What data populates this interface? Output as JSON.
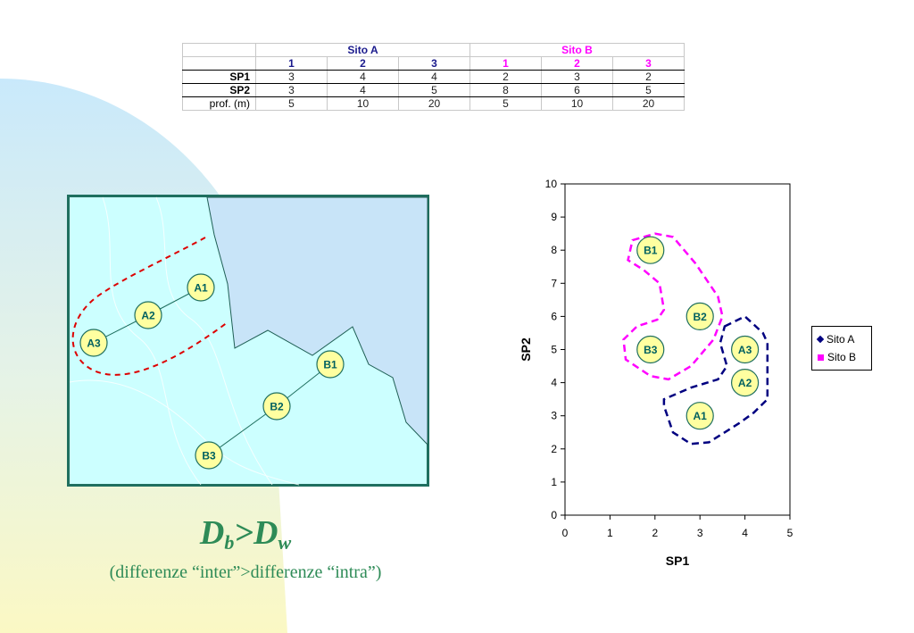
{
  "table": {
    "site_a": "Sito A",
    "site_b": "Sito B",
    "col_labels": [
      "1",
      "2",
      "3",
      "1",
      "2",
      "3"
    ],
    "rows": [
      {
        "label": "SP1",
        "values": [
          "3",
          "4",
          "4",
          "2",
          "3",
          "2"
        ]
      },
      {
        "label": "SP2",
        "values": [
          "3",
          "4",
          "5",
          "8",
          "6",
          "5"
        ]
      },
      {
        "label": "prof. (m)",
        "values": [
          "5",
          "10",
          "20",
          "5",
          "10",
          "20"
        ]
      }
    ]
  },
  "map": {
    "nodes": [
      "A1",
      "A2",
      "A3",
      "B1",
      "B2",
      "B3"
    ]
  },
  "formula": {
    "d1": "D",
    "sub1": "b",
    "op": ">",
    "d2": "D",
    "sub2": "w"
  },
  "caption": "(differenze “inter”>differenze “intra”)",
  "colors": {
    "site_a": "#000080",
    "site_b": "#ff00ff",
    "node_fill": "#ffffa0",
    "node_text": "#006060",
    "map_fill": "#ccffff",
    "sea": "#cce6f6",
    "frame": "#1f6f5f",
    "formula": "#2e8b57",
    "dash_red": "#dd0000"
  },
  "chart_data": {
    "type": "scatter",
    "xlabel": "SP1",
    "ylabel": "SP2",
    "xlim": [
      0,
      5
    ],
    "ylim": [
      0,
      10
    ],
    "xticks": [
      "0",
      "1",
      "2",
      "3",
      "4",
      "5"
    ],
    "yticks": [
      "0",
      "1",
      "2",
      "3",
      "4",
      "5",
      "6",
      "7",
      "8",
      "9",
      "10"
    ],
    "grid": false,
    "legend_position": "right",
    "series": [
      {
        "name": "Sito A",
        "points": [
          {
            "label": "A1",
            "x": 3.0,
            "y": 3.0
          },
          {
            "label": "A2",
            "x": 4.0,
            "y": 4.0
          },
          {
            "label": "A3",
            "x": 4.0,
            "y": 5.0
          }
        ]
      },
      {
        "name": "Sito B",
        "points": [
          {
            "label": "B1",
            "x": 1.9,
            "y": 8.0
          },
          {
            "label": "B2",
            "x": 3.0,
            "y": 6.0
          },
          {
            "label": "B3",
            "x": 1.9,
            "y": 5.0
          }
        ]
      }
    ]
  }
}
